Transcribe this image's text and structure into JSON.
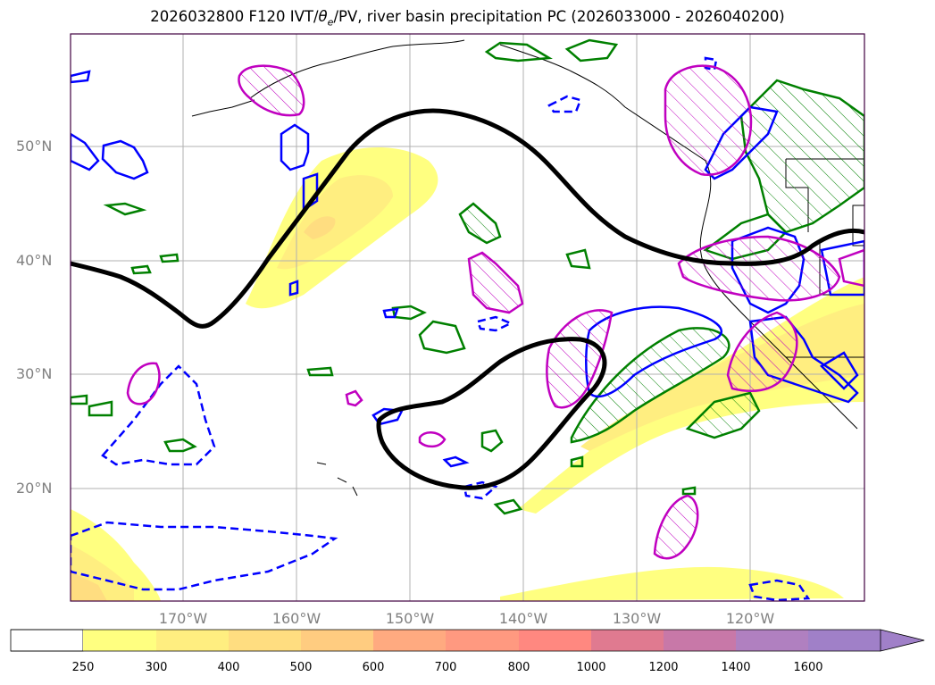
{
  "title": {
    "prefix": "2026032800 F120 IVT/",
    "theta": "θ",
    "sub": "e",
    "suffix": "/PV, river basin precipitation PC (2026033000 - 2026040200)"
  },
  "map": {
    "lat_labels": [
      "50°N",
      "40°N",
      "30°N",
      "20°N"
    ],
    "lon_labels": [
      "170°W",
      "160°W",
      "150°W",
      "140°W",
      "130°W",
      "120°W"
    ],
    "contour_colors": {
      "pv_line": "#000000",
      "green_contour": "#008000",
      "blue_contour": "#0000ff",
      "magenta_contour": "#c000c0",
      "coastline": "#000000"
    }
  },
  "colorbar": {
    "ticks": [
      "250",
      "300",
      "400",
      "500",
      "600",
      "700",
      "800",
      "1000",
      "1200",
      "1400",
      "1600"
    ],
    "colors": [
      "#ffffff",
      "#ffff80",
      "#ffee80",
      "#ffdd80",
      "#ffcc80",
      "#ffaa80",
      "#ff9980",
      "#ff8880",
      "#e07a90",
      "#c878a8",
      "#b080c0",
      "#a080c8"
    ]
  }
}
